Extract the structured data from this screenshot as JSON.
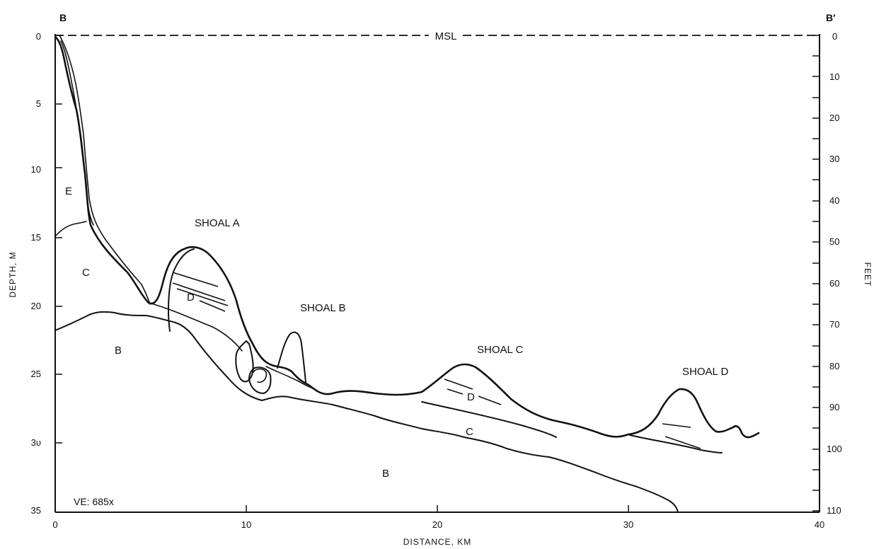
{
  "section": {
    "left_label": "B",
    "right_label": "B′"
  },
  "sea_level_label": "MSL",
  "left_axis": {
    "title": "DEPTH, M",
    "ticks": [
      "0",
      "5",
      "10",
      "15",
      "20",
      "25",
      "3υ",
      "35"
    ]
  },
  "right_axis": {
    "title": "FEET",
    "ticks": [
      "0",
      "10",
      "20",
      "30",
      "40",
      "50",
      "60",
      "70",
      "80",
      "90",
      "100",
      "110"
    ]
  },
  "bottom_axis": {
    "title": "DISTANCE, KM",
    "ticks": [
      "0",
      "10",
      "20",
      "30",
      "40"
    ]
  },
  "shoals": [
    {
      "label": "SHOAL A"
    },
    {
      "label": "SHOAL B"
    },
    {
      "label": "SHOAL C"
    },
    {
      "label": "SHOAL D"
    }
  ],
  "units": {
    "E": "E",
    "C": "C",
    "B": "B",
    "D": "D"
  },
  "vertical_exaggeration": "VE: 685x"
}
